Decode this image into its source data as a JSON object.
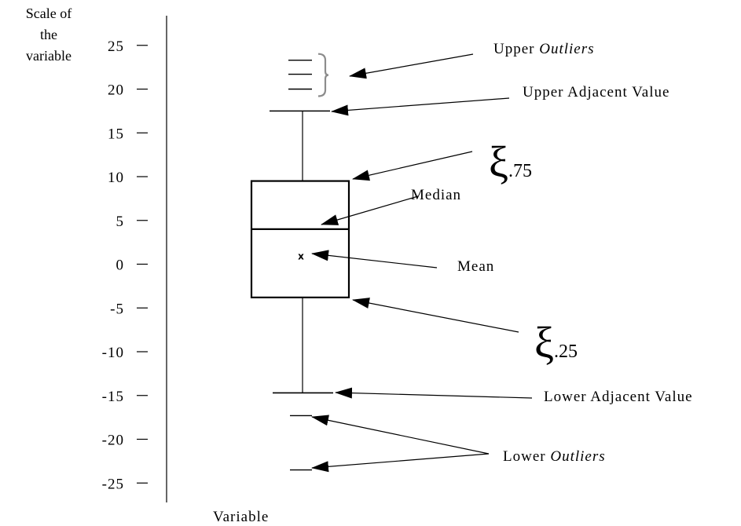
{
  "axis": {
    "title_lines": [
      "Scale of",
      "the",
      "variable"
    ],
    "xlabel": "Variable",
    "ticks": [
      25,
      20,
      15,
      10,
      5,
      0,
      -5,
      -10,
      -15,
      -20,
      -25
    ],
    "tick_labels": [
      "25",
      "20",
      "15",
      "10",
      "5",
      "0",
      "-5",
      "-10",
      "-15",
      "-20",
      "-25"
    ]
  },
  "boxplot": {
    "q75": 9.5,
    "median": 4.0,
    "mean": 1.0,
    "q25": -3.8,
    "upper_adjacent": 17.5,
    "lower_adjacent": -14.7,
    "upper_outliers": [
      23.3,
      21.7,
      20.0
    ],
    "lower_outliers": [
      -17.3,
      -23.5
    ],
    "mean_marker": "x"
  },
  "labels": {
    "upper_outliers_prefix": "Upper ",
    "upper_outliers_italic": "Outliers",
    "upper_adjacent": "Upper Adjacent Value",
    "xi": "ξ",
    "q75_sub": ".75",
    "median": "Median",
    "mean": "Mean",
    "q25_sub": ".25",
    "lower_adjacent": "Lower Adjacent Value",
    "lower_outliers_prefix": "Lower ",
    "lower_outliers_italic": "Outliers"
  },
  "colors": {
    "ink": "#000000",
    "brace": "#8c8c8c"
  }
}
